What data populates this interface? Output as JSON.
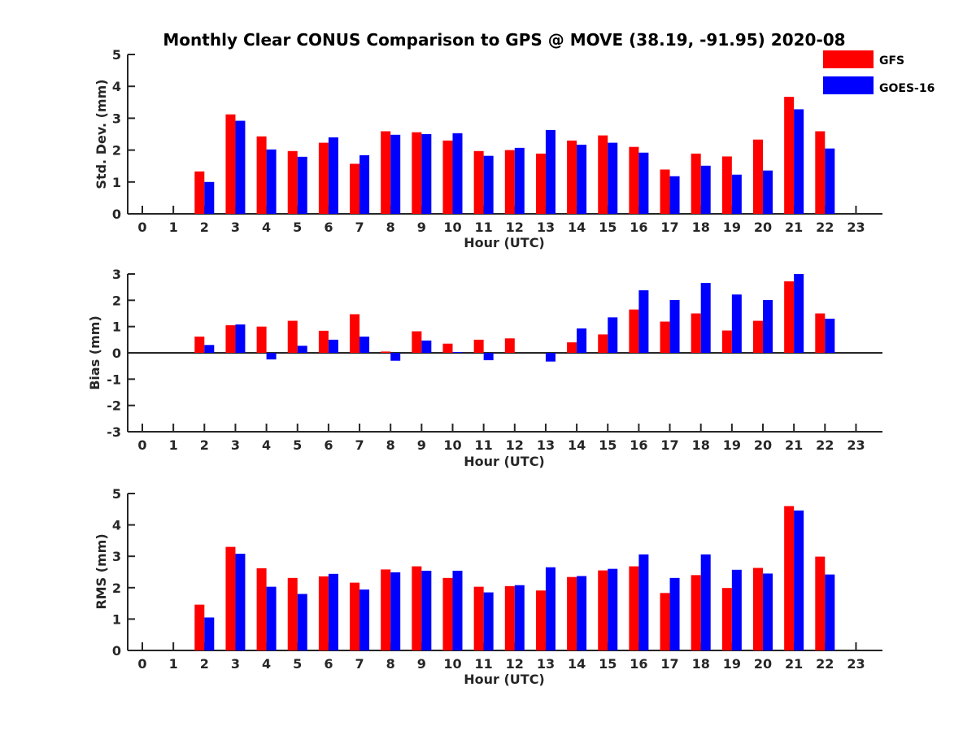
{
  "title": "Monthly Clear CONUS Comparison to GPS @ MOVE (38.19, -91.95) 2020-08",
  "legend": {
    "placement": "top-right",
    "entries": [
      {
        "name": "GFS",
        "color": "#ff0000"
      },
      {
        "name": "GOES-16",
        "color": "#0000ff"
      }
    ]
  },
  "chart_data": [
    {
      "type": "bar",
      "xlabel": "Hour (UTC)",
      "ylabel": "Std. Dev. (mm)",
      "ylim": [
        0,
        5
      ],
      "yticks": [
        0,
        1,
        2,
        3,
        4,
        5
      ],
      "categories": [
        0,
        1,
        2,
        3,
        4,
        5,
        6,
        7,
        8,
        9,
        10,
        11,
        12,
        13,
        14,
        15,
        16,
        17,
        18,
        19,
        20,
        21,
        22,
        23
      ],
      "grid": false,
      "series": [
        {
          "name": "GFS",
          "color": "#ff0000",
          "values": [
            null,
            null,
            1.33,
            3.12,
            2.43,
            1.97,
            2.23,
            1.57,
            2.59,
            2.56,
            2.3,
            1.97,
            2.0,
            1.89,
            2.3,
            2.46,
            2.1,
            1.39,
            1.89,
            1.8,
            2.33,
            3.67,
            2.59,
            null
          ]
        },
        {
          "name": "GOES-16",
          "color": "#0000ff",
          "values": [
            null,
            null,
            1.0,
            2.92,
            2.02,
            1.79,
            2.4,
            1.84,
            2.48,
            2.5,
            2.53,
            1.82,
            2.07,
            2.63,
            2.17,
            2.23,
            1.92,
            1.18,
            1.51,
            1.23,
            1.36,
            3.28,
            2.05,
            null
          ]
        }
      ]
    },
    {
      "type": "bar",
      "xlabel": "Hour (UTC)",
      "ylabel": "Bias (mm)",
      "ylim": [
        -3,
        3
      ],
      "yticks": [
        -3,
        -2,
        -1,
        0,
        1,
        2,
        3
      ],
      "categories": [
        0,
        1,
        2,
        3,
        4,
        5,
        6,
        7,
        8,
        9,
        10,
        11,
        12,
        13,
        14,
        15,
        16,
        17,
        18,
        19,
        20,
        21,
        22,
        23
      ],
      "grid": false,
      "series": [
        {
          "name": "GFS",
          "color": "#ff0000",
          "values": [
            null,
            null,
            0.62,
            1.05,
            1.0,
            1.22,
            0.84,
            1.47,
            0.05,
            0.82,
            0.35,
            0.5,
            0.55,
            0.0,
            0.4,
            0.7,
            1.65,
            1.19,
            1.5,
            0.85,
            1.22,
            2.72,
            1.5,
            null
          ]
        },
        {
          "name": "GOES-16",
          "color": "#0000ff",
          "values": [
            null,
            null,
            0.3,
            1.08,
            -0.25,
            0.27,
            0.5,
            0.62,
            -0.3,
            0.47,
            0.03,
            -0.28,
            0.0,
            -0.33,
            0.93,
            1.35,
            2.38,
            2.01,
            2.66,
            2.22,
            2.01,
            3.0,
            1.3,
            null
          ]
        }
      ]
    },
    {
      "type": "bar",
      "xlabel": "Hour (UTC)",
      "ylabel": "RMS (mm)",
      "ylim": [
        0,
        5
      ],
      "yticks": [
        0,
        1,
        2,
        3,
        4,
        5
      ],
      "categories": [
        0,
        1,
        2,
        3,
        4,
        5,
        6,
        7,
        8,
        9,
        10,
        11,
        12,
        13,
        14,
        15,
        16,
        17,
        18,
        19,
        20,
        21,
        22,
        23
      ],
      "grid": false,
      "series": [
        {
          "name": "GFS",
          "color": "#ff0000",
          "values": [
            null,
            null,
            1.46,
            3.3,
            2.62,
            2.31,
            2.36,
            2.16,
            2.58,
            2.68,
            2.31,
            2.03,
            2.05,
            1.91,
            2.34,
            2.55,
            2.68,
            1.83,
            2.4,
            1.99,
            2.63,
            4.6,
            2.99,
            null
          ]
        },
        {
          "name": "GOES-16",
          "color": "#0000ff",
          "values": [
            null,
            null,
            1.05,
            3.08,
            2.03,
            1.8,
            2.44,
            1.94,
            2.49,
            2.54,
            2.54,
            1.85,
            2.08,
            2.65,
            2.37,
            2.6,
            3.06,
            2.31,
            3.06,
            2.57,
            2.45,
            4.46,
            2.42,
            null
          ]
        }
      ]
    }
  ]
}
